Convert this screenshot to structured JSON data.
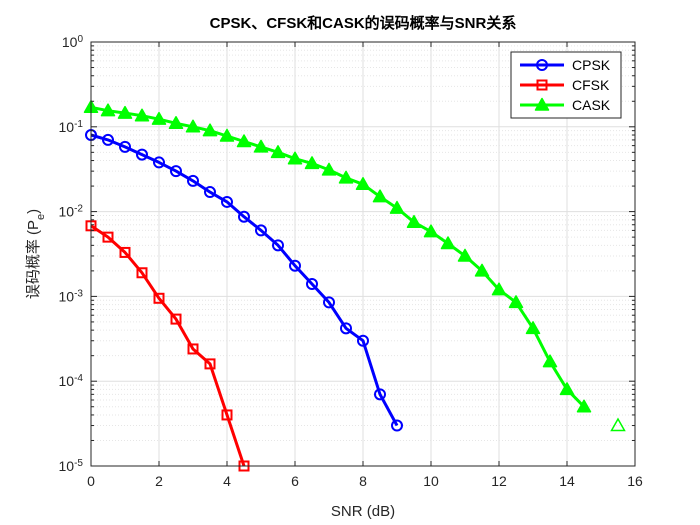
{
  "chart_data": {
    "type": "line",
    "title": "CPSK、CFSK和CASK的误码概率与SNR关系",
    "xlabel": "SNR (dB)",
    "ylabel": "误码概率 (P",
    "ylabel_sub": "e",
    "ylabel_close": ")",
    "xlim": [
      0,
      16
    ],
    "ylim": [
      1e-05,
      1
    ],
    "yscale": "log",
    "grid": true,
    "minor_grid": true,
    "legend_position": "top-right",
    "x_ticks": [
      "0",
      "2",
      "4",
      "6",
      "8",
      "10",
      "12",
      "14",
      "16"
    ],
    "y_tick_base": "10",
    "y_tick_exponents": [
      "-5",
      "-4",
      "-3",
      "-2",
      "-1",
      "0"
    ],
    "series": [
      {
        "name": "CPSK",
        "color": "#0000ff",
        "marker": "circle",
        "x": [
          0,
          0.5,
          1,
          1.5,
          2,
          2.5,
          3,
          3.5,
          4,
          4.5,
          5,
          5.5,
          6,
          6.5,
          7,
          7.5,
          8,
          8.5,
          9
        ],
        "y": [
          0.08,
          0.07,
          0.058,
          0.047,
          0.038,
          0.03,
          0.023,
          0.017,
          0.013,
          0.0087,
          0.006,
          0.004,
          0.0023,
          0.0014,
          0.00085,
          0.00042,
          0.0003,
          7e-05,
          3e-05
        ]
      },
      {
        "name": "CFSK",
        "color": "#ff0000",
        "marker": "square",
        "x": [
          0,
          0.5,
          1,
          1.5,
          2,
          2.5,
          3,
          3.5,
          4,
          4.5
        ],
        "y": [
          0.0068,
          0.005,
          0.0033,
          0.0019,
          0.00095,
          0.00054,
          0.00024,
          0.00016,
          4e-05,
          1e-05
        ]
      },
      {
        "name": "CASK",
        "color": "#00ff00",
        "marker": "triangle",
        "x": [
          0,
          0.5,
          1,
          1.5,
          2,
          2.5,
          3,
          3.5,
          4,
          4.5,
          5,
          5.5,
          6,
          6.5,
          7,
          7.5,
          8,
          8.5,
          9,
          9.5,
          10,
          10.5,
          11,
          11.5,
          12,
          12.5,
          13,
          13.5,
          14,
          14.5
        ],
        "y": [
          0.17,
          0.155,
          0.145,
          0.135,
          0.123,
          0.11,
          0.1,
          0.09,
          0.078,
          0.067,
          0.058,
          0.05,
          0.042,
          0.037,
          0.031,
          0.025,
          0.021,
          0.015,
          0.011,
          0.0075,
          0.0058,
          0.0042,
          0.003,
          0.002,
          0.0012,
          0.00085,
          0.00042,
          0.00017,
          8e-05,
          5e-05
        ]
      },
      {
        "name": "",
        "color": "#00ff00",
        "marker": "triangle-open",
        "x": [
          15.5
        ],
        "y": [
          3e-05
        ]
      }
    ]
  }
}
